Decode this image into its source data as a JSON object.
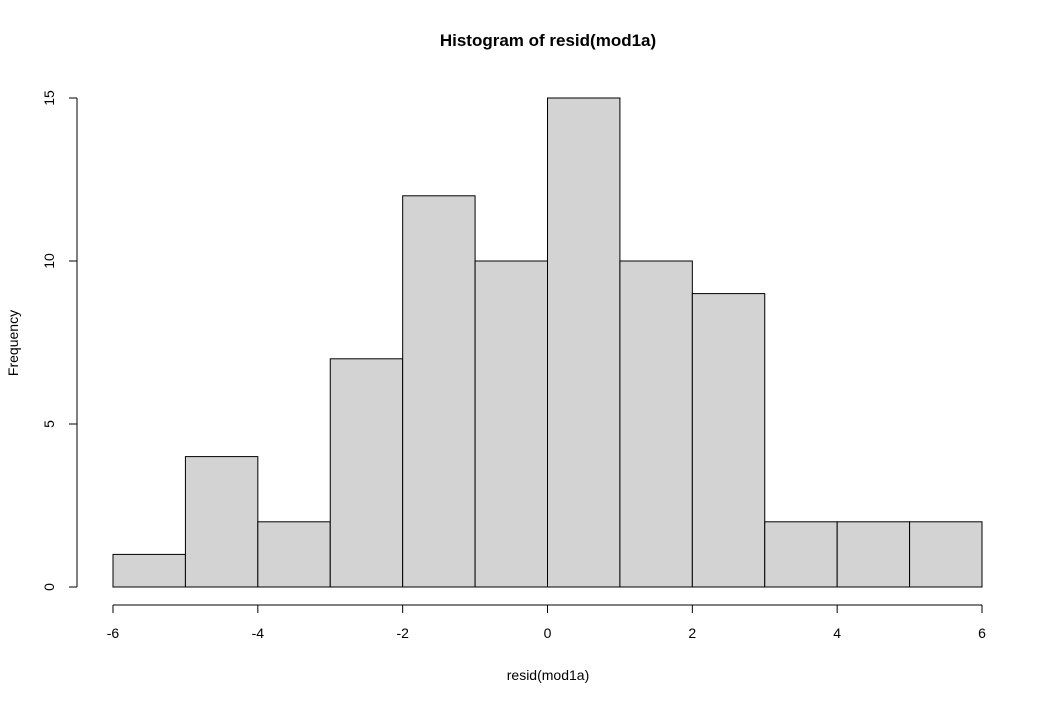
{
  "chart_data": {
    "type": "bar",
    "title": "Histogram of resid(mod1a)",
    "xlabel": "resid(mod1a)",
    "ylabel": "Frequency",
    "bin_edges": [
      -6,
      -5,
      -4,
      -3,
      -2,
      -1,
      0,
      1,
      2,
      3,
      4,
      5,
      6
    ],
    "values": [
      1,
      4,
      2,
      7,
      12,
      10,
      15,
      10,
      9,
      2,
      2,
      2
    ],
    "xlim": [
      -6,
      6
    ],
    "ylim": [
      0,
      15
    ],
    "x_ticks": [
      -6,
      -4,
      -2,
      0,
      2,
      4,
      6
    ],
    "x_tick_labels": [
      "-6",
      "-4",
      "-2",
      "0",
      "2",
      "4",
      "6"
    ],
    "y_ticks": [
      0,
      5,
      10,
      15
    ],
    "y_tick_labels": [
      "0",
      "5",
      "10",
      "15"
    ],
    "grid": false,
    "colors": {
      "bar_fill": "#d3d3d3",
      "bar_stroke": "#000000",
      "background": "#ffffff"
    }
  }
}
